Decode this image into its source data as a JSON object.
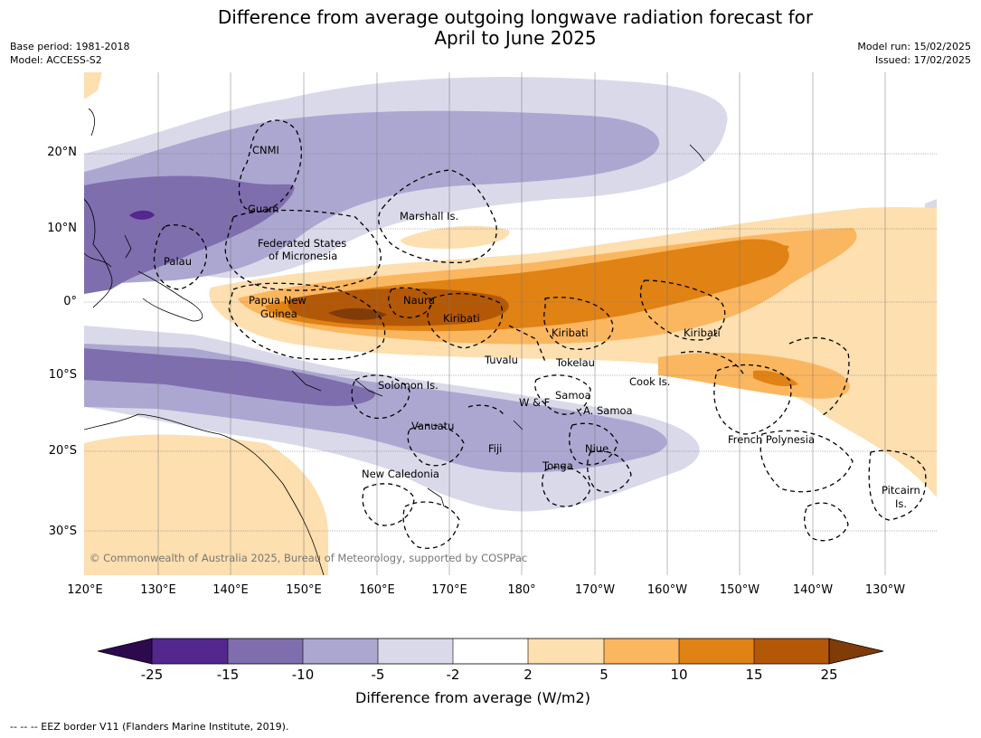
{
  "title_line1": "Difference from average outgoing longwave radiation forecast for",
  "title_line2": "April to June 2025",
  "meta_left": {
    "base_period": "Base period: 1981-2018",
    "model": "Model: ACCESS-S2"
  },
  "meta_right": {
    "model_run": "Model run: 15/02/2025",
    "issued": "Issued: 17/02/2025"
  },
  "map": {
    "lat_labels": [
      "20°N",
      "10°N",
      "0°",
      "10°S",
      "20°S",
      "30°S"
    ],
    "lon_labels": [
      "120°E",
      "130°E",
      "140°E",
      "150°E",
      "160°E",
      "170°E",
      "180°",
      "170°W",
      "160°W",
      "150°W",
      "140°W",
      "130°W"
    ],
    "region_labels": {
      "cnmi": "CNMI",
      "guam": "Guam",
      "marshall": "Marshall Is.",
      "fsm_1": "Federated States",
      "fsm_2": "of Micronesia",
      "palau": "Palau",
      "png_1": "Papua New",
      "png_2": "Guinea",
      "nauru": "Nauru",
      "kiribati_w": "Kiribati",
      "kiribati_c": "Kiribati",
      "kiribati_e": "Kiribati",
      "tuvalu": "Tuvalu",
      "tokelau": "Tokelau",
      "cook": "Cook Is.",
      "solomon": "Solomon Is.",
      "wf": "W & F",
      "samoa": "Samoa",
      "asamoa": "A. Samoa",
      "vanuatu": "Vanuatu",
      "fiji": "Fiji",
      "niue": "Niue",
      "tonga": "Tonga",
      "french_polynesia": "French Polynesia",
      "new_caledonia": "New Caledonia",
      "pitcairn_1": "Pitcairn",
      "pitcairn_2": "Is."
    },
    "copyright": "© Commonwealth of Australia 2025, Bureau of Meteorology, supported by COSPPac"
  },
  "colorbar": {
    "ticks": [
      "-25",
      "-15",
      "-10",
      "-5",
      "-2",
      "2",
      "5",
      "10",
      "15",
      "25"
    ],
    "colors": [
      "#2d0a4e",
      "#54278f",
      "#7f6eae",
      "#aca7d0",
      "#d9d9ea",
      "#ffffff",
      "#fddfb0",
      "#fbb660",
      "#e08214",
      "#b35806",
      "#7f3b08"
    ],
    "label": "Difference from average (W/m2)"
  },
  "footnote": "--  --  -- EEZ border V11 (Flanders Marine Institute, 2019)."
}
